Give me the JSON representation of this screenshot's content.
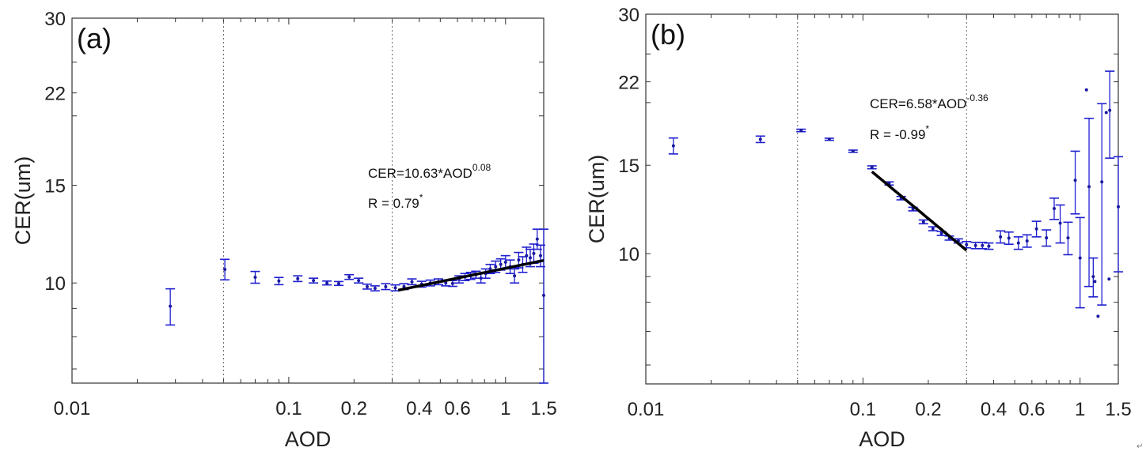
{
  "end_mark": "↵",
  "chart_data": [
    {
      "type": "scatter",
      "panel_label": "(a)",
      "xlabel": "AOD",
      "ylabel": "CER(um)",
      "xscale": "log",
      "yscale": "log",
      "xlim": [
        0.01,
        1.5
      ],
      "ylim": [
        6.6,
        30
      ],
      "xticks": [
        0.01,
        0.1,
        0.2,
        0.4,
        0.6,
        1,
        1.5
      ],
      "xtick_labels": [
        "0.01",
        "0.1",
        "0.2",
        "0.4",
        "0.6",
        "1",
        "1.5"
      ],
      "yticks": [
        10,
        15,
        22,
        30
      ],
      "ytick_labels": [
        "10",
        "15",
        "22",
        "30"
      ],
      "vlines": [
        0.05,
        0.3
      ],
      "marker_color": "#1f1fd0",
      "fit_color": "#000000",
      "fit": {
        "a": 10.63,
        "b": 0.08,
        "x_range": [
          0.32,
          1.5
        ]
      },
      "annotation": {
        "equation_base": "CER=10.63*AOD",
        "equation_exp": "0.08",
        "r_text": "R = 0.79",
        "r_sup": "*"
      },
      "points": [
        [
          0.0284,
          9.08,
          0.68
        ],
        [
          0.0507,
          10.58,
          0.45
        ],
        [
          0.07,
          10.24,
          0.25
        ],
        [
          0.09,
          10.08,
          0.15
        ],
        [
          0.11,
          10.18,
          0.12
        ],
        [
          0.13,
          10.1,
          0.1
        ],
        [
          0.15,
          10.0,
          0.08
        ],
        [
          0.17,
          9.98,
          0.08
        ],
        [
          0.19,
          10.25,
          0.1
        ],
        [
          0.21,
          10.1,
          0.1
        ],
        [
          0.23,
          9.85,
          0.1
        ],
        [
          0.25,
          9.78,
          0.1
        ],
        [
          0.28,
          9.85,
          0.12
        ],
        [
          0.31,
          9.8,
          0.12
        ],
        [
          0.34,
          9.85,
          0.12
        ],
        [
          0.37,
          10.05,
          0.12
        ],
        [
          0.41,
          9.95,
          0.12
        ],
        [
          0.45,
          10.0,
          0.12
        ],
        [
          0.49,
          10.05,
          0.12
        ],
        [
          0.53,
          10.0,
          0.12
        ],
        [
          0.57,
          9.98,
          0.12
        ],
        [
          0.61,
          10.15,
          0.15
        ],
        [
          0.65,
          10.25,
          0.15
        ],
        [
          0.69,
          10.3,
          0.15
        ],
        [
          0.73,
          10.35,
          0.15
        ],
        [
          0.77,
          10.2,
          0.2
        ],
        [
          0.81,
          10.4,
          0.2
        ],
        [
          0.85,
          10.6,
          0.2
        ],
        [
          0.9,
          10.7,
          0.25
        ],
        [
          0.95,
          10.8,
          0.25
        ],
        [
          1.0,
          10.9,
          0.3
        ],
        [
          1.05,
          10.7,
          0.3
        ],
        [
          1.1,
          10.3,
          0.3
        ],
        [
          1.15,
          11.0,
          0.35
        ],
        [
          1.2,
          10.8,
          0.35
        ],
        [
          1.25,
          11.2,
          0.4
        ],
        [
          1.3,
          11.1,
          0.4
        ],
        [
          1.35,
          11.3,
          0.45
        ],
        [
          1.4,
          12.0,
          0.5
        ],
        [
          1.45,
          11.2,
          0.5
        ],
        [
          1.5,
          9.5,
          3.0
        ]
      ]
    },
    {
      "type": "scatter",
      "panel_label": "(b)",
      "xlabel": "AOD",
      "ylabel": "CER(um)",
      "xscale": "log",
      "yscale": "log",
      "xlim": [
        0.01,
        1.5
      ],
      "ylim": [
        5.5,
        30
      ],
      "xticks": [
        0.01,
        0.1,
        0.2,
        0.4,
        0.6,
        1,
        1.5
      ],
      "xtick_labels": [
        "0.01",
        "0.1",
        "0.2",
        "0.4",
        "0.6",
        "1",
        "1.5"
      ],
      "yticks": [
        10,
        15,
        22,
        30
      ],
      "ytick_labels": [
        "10",
        "15",
        "22",
        "30"
      ],
      "vlines": [
        0.05,
        0.3
      ],
      "marker_color": "#1f1fd0",
      "fit_color": "#000000",
      "fit": {
        "a": 6.58,
        "b": -0.36,
        "x_range": [
          0.11,
          0.3
        ]
      },
      "annotation": {
        "equation_base": "CER=6.58*AOD",
        "equation_exp": "-0.36",
        "r_text": "R = -0.99",
        "r_sup": "*"
      },
      "points": [
        [
          0.0134,
          16.4,
          0.6
        ],
        [
          0.0337,
          16.9,
          0.25
        ],
        [
          0.0519,
          17.6,
          0.1
        ],
        [
          0.07,
          16.9,
          0.08
        ],
        [
          0.09,
          16.0,
          0.08
        ],
        [
          0.11,
          14.86,
          0.1
        ],
        [
          0.132,
          13.8,
          0.1
        ],
        [
          0.15,
          12.9,
          0.1
        ],
        [
          0.17,
          12.27,
          0.1
        ],
        [
          0.19,
          11.57,
          0.1
        ],
        [
          0.21,
          11.21,
          0.1
        ],
        [
          0.23,
          10.97,
          0.1
        ],
        [
          0.25,
          10.74,
          0.1
        ],
        [
          0.275,
          10.6,
          0.1
        ],
        [
          0.3,
          10.42,
          0.15
        ],
        [
          0.33,
          10.38,
          0.15
        ],
        [
          0.355,
          10.38,
          0.15
        ],
        [
          0.38,
          10.35,
          0.15
        ],
        [
          0.43,
          10.8,
          0.3
        ],
        [
          0.47,
          10.74,
          0.3
        ],
        [
          0.52,
          10.5,
          0.3
        ],
        [
          0.57,
          10.6,
          0.3
        ],
        [
          0.63,
          11.2,
          0.4
        ],
        [
          0.7,
          10.75,
          0.4
        ],
        [
          0.76,
          12.3,
          0.6
        ],
        [
          0.81,
          11.5,
          1.0
        ],
        [
          0.88,
          10.75,
          0.8
        ],
        [
          0.95,
          14.0,
          2.0
        ],
        [
          1.0,
          9.8,
          2.0
        ],
        [
          1.07,
          21.2,
          0
        ],
        [
          1.1,
          13.6,
          5.0
        ],
        [
          1.15,
          9.0,
          0.8
        ],
        [
          1.17,
          8.8,
          0
        ],
        [
          1.21,
          7.5,
          0
        ],
        [
          1.26,
          13.9,
          6.0
        ],
        [
          1.32,
          19.1,
          0
        ],
        [
          1.36,
          8.9,
          0
        ],
        [
          1.37,
          19.3,
          3.8
        ],
        [
          1.5,
          12.4,
          3.2
        ]
      ]
    }
  ]
}
